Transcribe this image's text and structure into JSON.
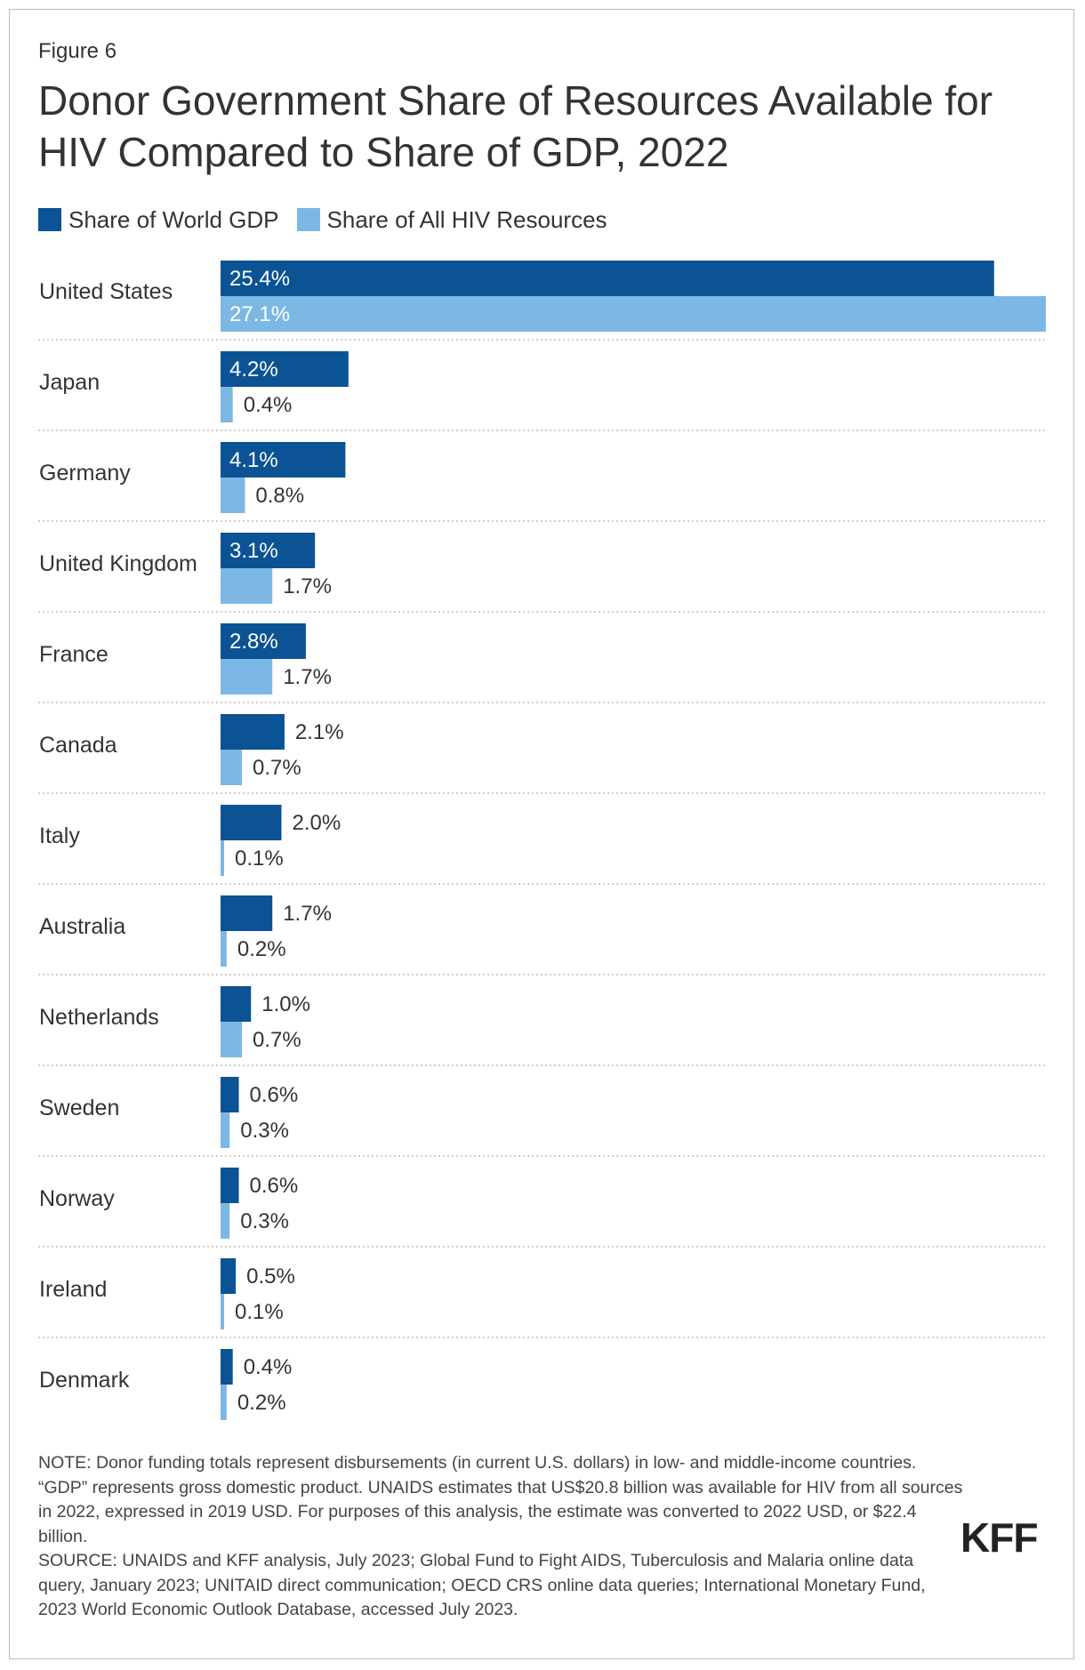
{
  "figure_label": "Figure 6",
  "title": "Donor Government Share of Resources Available for HIV Compared to Share of GDP, 2022",
  "legend": [
    {
      "label": "Share of World GDP",
      "color": "#0b5394"
    },
    {
      "label": "Share of All HIV Resources",
      "color": "#7db8e4"
    }
  ],
  "colors": {
    "gdp": "#0b5394",
    "hiv": "#7db8e4",
    "divider": "#bfbfbf",
    "label_on_bar": "#ffffff",
    "label_text": "#333333"
  },
  "chart_data": {
    "type": "bar",
    "orientation": "horizontal",
    "title": "Donor Government Share of Resources Available for HIV Compared to Share of GDP, 2022",
    "xlabel": "",
    "ylabel": "",
    "xlim": [
      0,
      27.1
    ],
    "unit": "%",
    "categories": [
      "United States",
      "Japan",
      "Germany",
      "United Kingdom",
      "France",
      "Canada",
      "Italy",
      "Australia",
      "Netherlands",
      "Sweden",
      "Norway",
      "Ireland",
      "Denmark"
    ],
    "series": [
      {
        "name": "Share of World GDP",
        "values": [
          25.4,
          4.2,
          4.1,
          3.1,
          2.8,
          2.1,
          2.0,
          1.7,
          1.0,
          0.6,
          0.6,
          0.5,
          0.4
        ]
      },
      {
        "name": "Share of All HIV Resources",
        "values": [
          27.1,
          0.4,
          0.8,
          1.7,
          1.7,
          0.7,
          0.1,
          0.2,
          0.7,
          0.3,
          0.3,
          0.1,
          0.2
        ]
      }
    ]
  },
  "note": "NOTE: Donor funding totals represent disbursements (in current U.S. dollars) in low- and middle-income countries. “GDP” represents gross domestic product. UNAIDS estimates that US$20.8 billion was available for HIV from all sources in 2022, expressed in 2019 USD. For purposes of this analysis, the estimate was converted to 2022 USD, or $22.4 billion.",
  "source": "SOURCE: UNAIDS and KFF analysis, July 2023; Global Fund to Fight AIDS, Tuberculosis and Malaria online data query, January 2023; UNITAID direct communication; OECD CRS online data queries; International Monetary Fund, 2023 World Economic Outlook Database, accessed July 2023.",
  "logo_text": "KFF"
}
